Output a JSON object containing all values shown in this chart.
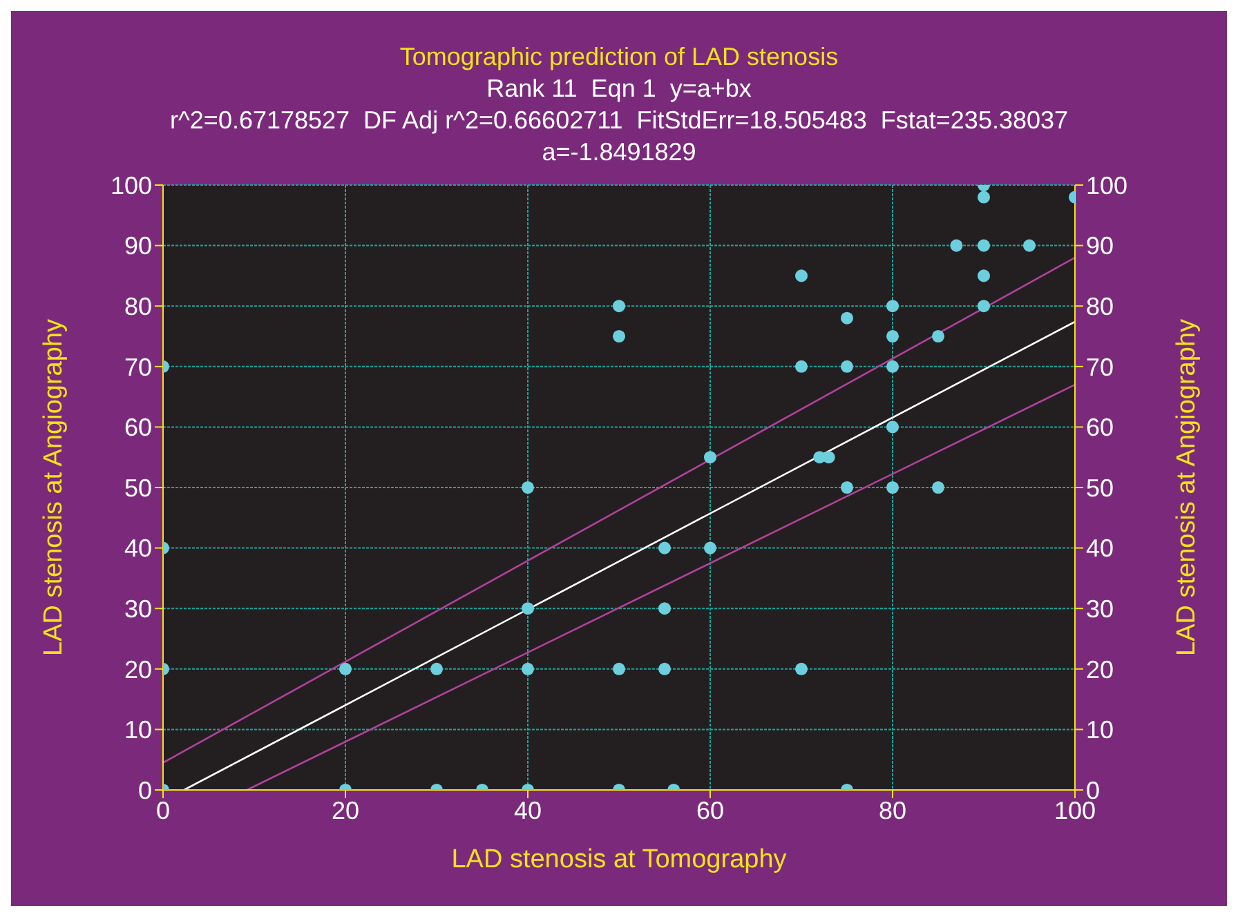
{
  "chart_data": {
    "type": "scatter",
    "title": "Tomographic prediction of LAD stenosis",
    "subtitle": "Rank 11  Eqn 1  y=a+bx",
    "annotations": [
      "r^2=0.67178527  DF Adj r^2=0.66602711  FitStdErr=18.505483  Fstat=235.38037",
      "a=-1.8491829"
    ],
    "xlabel": "LAD stenosis at Tomography",
    "ylabel": "LAD stenosis at Angiography",
    "y2label": "LAD stenosis at Angiography",
    "xlim": [
      0,
      100
    ],
    "xticks": [
      0,
      20,
      40,
      60,
      80,
      100
    ],
    "ylim": [
      0,
      100
    ],
    "yticks": [
      0,
      10,
      20,
      30,
      40,
      50,
      60,
      70,
      80,
      90,
      100
    ],
    "y2lim": [
      0,
      100
    ],
    "y2ticks": [
      0,
      10,
      20,
      30,
      40,
      50,
      60,
      70,
      80,
      90,
      100
    ],
    "grid": true,
    "series": [
      {
        "marker": "circle",
        "color": "#6ccfdd",
        "x": [
          0,
          0,
          0,
          0,
          20,
          20,
          30,
          30,
          35,
          40,
          40,
          40,
          40,
          50,
          50,
          50,
          50,
          55,
          55,
          55,
          56,
          60,
          60,
          70,
          70,
          70,
          72,
          73,
          75,
          75,
          75,
          75,
          80,
          80,
          80,
          80,
          80,
          85,
          85,
          87,
          90,
          90,
          90,
          90,
          90,
          95,
          100
        ],
        "values": [
          70,
          40,
          20,
          0,
          20,
          0,
          20,
          0,
          0,
          50,
          30,
          20,
          0,
          80,
          75,
          20,
          0,
          40,
          30,
          20,
          0,
          55,
          40,
          85,
          70,
          20,
          55,
          55,
          78,
          70,
          50,
          0,
          80,
          75,
          70,
          60,
          50,
          75,
          50,
          90,
          100,
          98,
          90,
          85,
          80,
          90,
          98
        ]
      },
      {
        "type": "line",
        "marker": "none",
        "color": "#ffffff",
        "x": [
          2.3,
          100
        ],
        "values": [
          0,
          77.4
        ]
      },
      {
        "type": "line",
        "marker": "none",
        "color": "#b0429a",
        "x": [
          0,
          100
        ],
        "values": [
          4.5,
          88
        ]
      },
      {
        "type": "line",
        "marker": "none",
        "color": "#b0429a",
        "x": [
          9.2,
          100
        ],
        "values": [
          0,
          67
        ]
      }
    ]
  }
}
